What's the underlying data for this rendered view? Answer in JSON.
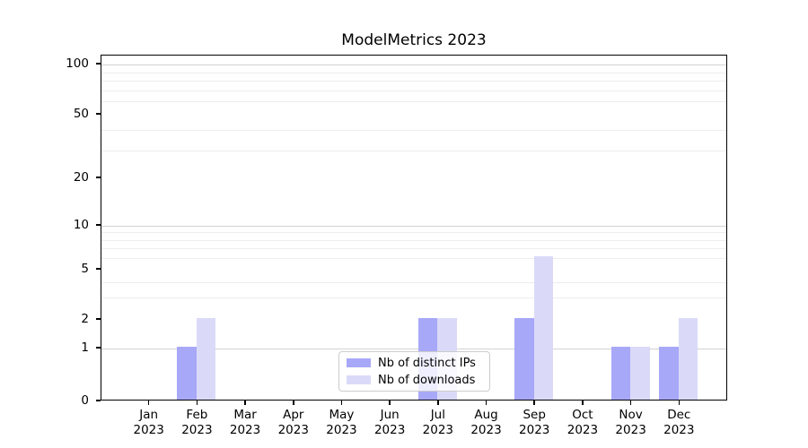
{
  "title": "ModelMetrics 2023",
  "legend": {
    "items": [
      {
        "label": "Nb of distinct IPs",
        "color": "#a8a8f8"
      },
      {
        "label": "Nb of downloads",
        "color": "#dadaf8"
      }
    ]
  },
  "chart_data": {
    "type": "bar",
    "title": "ModelMetrics 2023",
    "categories": [
      "Jan 2023",
      "Feb 2023",
      "Mar 2023",
      "Apr 2023",
      "May 2023",
      "Jun 2023",
      "Jul 2023",
      "Aug 2023",
      "Sep 2023",
      "Oct 2023",
      "Nov 2023",
      "Dec 2023"
    ],
    "x_tick_labels": [
      {
        "month": "Jan",
        "year": "2023"
      },
      {
        "month": "Feb",
        "year": "2023"
      },
      {
        "month": "Mar",
        "year": "2023"
      },
      {
        "month": "Apr",
        "year": "2023"
      },
      {
        "month": "May",
        "year": "2023"
      },
      {
        "month": "Jun",
        "year": "2023"
      },
      {
        "month": "Jul",
        "year": "2023"
      },
      {
        "month": "Aug",
        "year": "2023"
      },
      {
        "month": "Sep",
        "year": "2023"
      },
      {
        "month": "Oct",
        "year": "2023"
      },
      {
        "month": "Nov",
        "year": "2023"
      },
      {
        "month": "Dec",
        "year": "2023"
      }
    ],
    "series": [
      {
        "name": "Nb of distinct IPs",
        "color": "#a8a8f8",
        "values": [
          0,
          1,
          0,
          0,
          0,
          0,
          2,
          0,
          2,
          0,
          1,
          1
        ]
      },
      {
        "name": "Nb of downloads",
        "color": "#dadaf8",
        "values": [
          0,
          2,
          0,
          0,
          0,
          0,
          2,
          0,
          6,
          0,
          1,
          2
        ]
      }
    ],
    "xlabel": "",
    "ylabel": "",
    "yscale": "symlog",
    "y_ticks": [
      0,
      1,
      2,
      5,
      10,
      20,
      50,
      100
    ],
    "y_tick_labels": [
      "0",
      "1",
      "2",
      "5",
      "10",
      "20",
      "50",
      "100"
    ],
    "minor_gridline_values": [
      3,
      4,
      6,
      7,
      8,
      9,
      30,
      40,
      60,
      70,
      80,
      90
    ],
    "major_gridline_values": [
      1,
      10,
      100
    ],
    "ylim": [
      0,
      115
    ],
    "grid": "horizontal",
    "legend_position": "lower center"
  }
}
